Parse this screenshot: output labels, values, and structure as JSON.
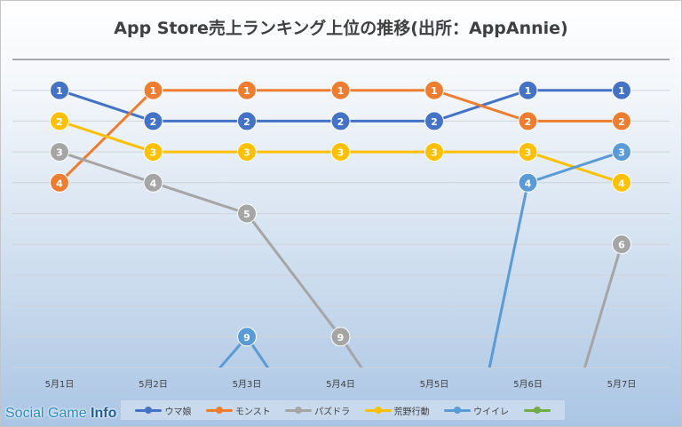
{
  "chart_data": {
    "type": "line",
    "title": "App Store売上ランキング上位の推移(出所：AppAnnie)",
    "categories": [
      "5月1日",
      "5月2日",
      "5月3日",
      "5月4日",
      "5月5日",
      "5月6日",
      "5月7日"
    ],
    "y_reversed": true,
    "ylim": [
      1,
      9
    ],
    "grid": true,
    "legend_position": "bottom",
    "series": [
      {
        "name": "ウマ娘",
        "color": "#4472c4",
        "values": [
          1,
          2,
          2,
          2,
          2,
          1,
          1
        ]
      },
      {
        "name": "モンスト",
        "color": "#ed7d31",
        "values": [
          4,
          1,
          1,
          1,
          1,
          2,
          2
        ]
      },
      {
        "name": "パズドラ",
        "color": "#a5a5a5",
        "values": [
          3,
          4,
          5,
          9,
          null,
          null,
          6
        ]
      },
      {
        "name": "荒野行動",
        "color": "#ffc000",
        "values": [
          2,
          3,
          3,
          3,
          3,
          3,
          4
        ]
      },
      {
        "name": "ウイイレ",
        "color": "#5b9bd5",
        "values": [
          null,
          null,
          9,
          null,
          null,
          4,
          3
        ]
      },
      {
        "name": "",
        "color": "#70ad47",
        "values": [
          null,
          null,
          null,
          null,
          null,
          null,
          null
        ]
      }
    ]
  },
  "watermark": {
    "part1": "Social Game ",
    "part2": "Info"
  }
}
